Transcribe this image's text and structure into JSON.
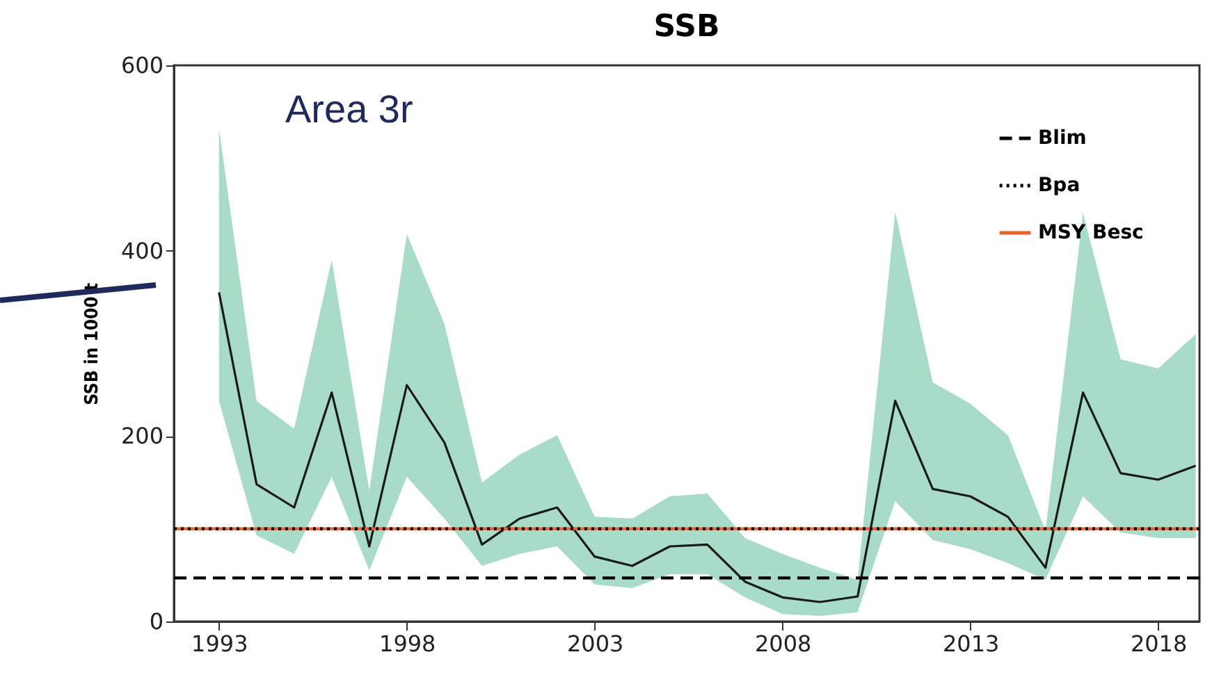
{
  "chart_data": {
    "type": "line",
    "title": "SSB",
    "ylabel": "SSB in 1000 t",
    "annotations": [
      "Area 3r"
    ],
    "x": [
      1993,
      1994,
      1995,
      1996,
      1997,
      1998,
      1999,
      2000,
      2001,
      2002,
      2003,
      2004,
      2005,
      2006,
      2007,
      2008,
      2009,
      2010,
      2011,
      2012,
      2013,
      2014,
      2015,
      2016,
      2017,
      2018,
      2019
    ],
    "series": [
      {
        "color": "#1a1a1a",
        "values": [
          355,
          148,
          123,
          247,
          81,
          255,
          193,
          83,
          111,
          123,
          70,
          60,
          81,
          83,
          43,
          26,
          21,
          27,
          238,
          143,
          135,
          113,
          58,
          247,
          160,
          153,
          168
        ],
        "lower": [
          238,
          93,
          73,
          156,
          55,
          156,
          111,
          60,
          73,
          81,
          40,
          36,
          51,
          51,
          26,
          8,
          6,
          10,
          130,
          88,
          78,
          63,
          45,
          135,
          96,
          90,
          90
        ],
        "upper": [
          532,
          238,
          208,
          390,
          141,
          418,
          321,
          150,
          180,
          201,
          113,
          111,
          135,
          138,
          90,
          73,
          58,
          45,
          442,
          258,
          235,
          201,
          98,
          441,
          283,
          273,
          310
        ]
      }
    ],
    "ref_lines": [
      {
        "axis": "y",
        "value": 47,
        "label": "Blim",
        "color": "#000000",
        "line_style": "dashed"
      },
      {
        "axis": "y",
        "value": 100,
        "label": "Bpa",
        "color": "#000000",
        "line_style": "dotted"
      },
      {
        "axis": "y",
        "value": 100,
        "label": "MSY Besc",
        "color": "#e8602c",
        "line_style": "solid"
      }
    ],
    "xlim": [
      1991.8,
      2019.1
    ],
    "xticks": [
      1993,
      1998,
      2003,
      2008,
      2013,
      2018
    ],
    "ylim": [
      0,
      600
    ],
    "yticks": [
      0,
      200,
      400,
      600
    ],
    "grid": false,
    "legend": "top right",
    "marker": "none",
    "line_style": "solid"
  }
}
